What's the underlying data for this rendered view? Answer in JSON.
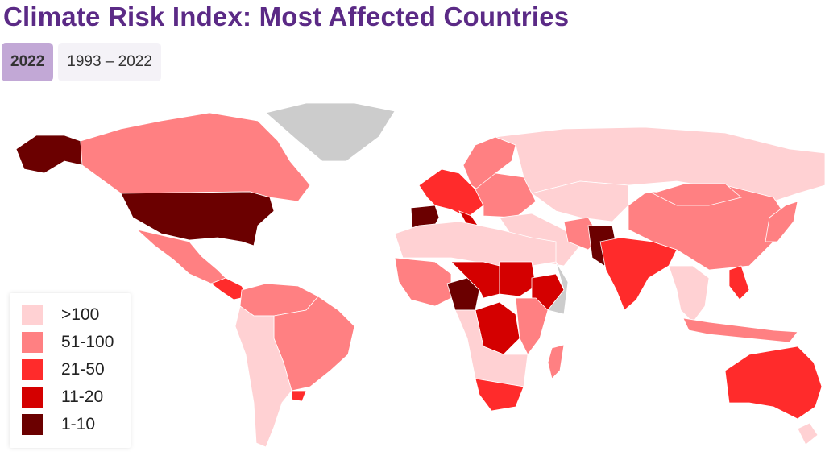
{
  "title": "Climate Risk Index: Most Affected Countries",
  "tabs": [
    {
      "label": "2022",
      "active": true
    },
    {
      "label": "1993 – 2022",
      "active": false
    }
  ],
  "legend": [
    {
      "label": ">100",
      "color": "#ffd1d3"
    },
    {
      "label": "51-100",
      "color": "#ff8082"
    },
    {
      "label": "21-50",
      "color": "#ff2b2b"
    },
    {
      "label": "11-20",
      "color": "#d40000"
    },
    {
      "label": "1-10",
      "color": "#6b0000"
    }
  ],
  "no_data_color": "#cccccc",
  "regions": [
    {
      "name": "Alaska (USA)",
      "category": 4
    },
    {
      "name": "Canada",
      "category": 1
    },
    {
      "name": "Greenland",
      "category": -1
    },
    {
      "name": "United States",
      "category": 4
    },
    {
      "name": "Mexico",
      "category": 1
    },
    {
      "name": "Central America",
      "category": 2
    },
    {
      "name": "South America North",
      "category": 1
    },
    {
      "name": "Brazil",
      "category": 1
    },
    {
      "name": "Southern Cone",
      "category": 0
    },
    {
      "name": "Uruguay",
      "category": 2
    },
    {
      "name": "Scandinavia",
      "category": 1
    },
    {
      "name": "Western Europe",
      "category": 2
    },
    {
      "name": "Spain",
      "category": 4
    },
    {
      "name": "Italy",
      "category": 3
    },
    {
      "name": "Eastern Europe",
      "category": 1
    },
    {
      "name": "Russia",
      "category": 0
    },
    {
      "name": "Central Asia",
      "category": 0
    },
    {
      "name": "Middle East",
      "category": 0
    },
    {
      "name": "Iran",
      "category": 1
    },
    {
      "name": "Pakistan",
      "category": 4
    },
    {
      "name": "India",
      "category": 2
    },
    {
      "name": "China",
      "category": 1
    },
    {
      "name": "Mongolia",
      "category": 1
    },
    {
      "name": "Japan",
      "category": 1
    },
    {
      "name": "Southeast Asia",
      "category": 0
    },
    {
      "name": "Philippines",
      "category": 2
    },
    {
      "name": "Indonesia",
      "category": 1
    },
    {
      "name": "North Africa",
      "category": 0
    },
    {
      "name": "West Africa",
      "category": 1
    },
    {
      "name": "Nigeria",
      "category": 4
    },
    {
      "name": "Sahel",
      "category": 3
    },
    {
      "name": "Sudan",
      "category": 3
    },
    {
      "name": "Ethiopia",
      "category": 3
    },
    {
      "name": "Somalia",
      "category": -1
    },
    {
      "name": "DR Congo",
      "category": 3
    },
    {
      "name": "East Africa",
      "category": 1
    },
    {
      "name": "Southern Africa",
      "category": 0
    },
    {
      "name": "South Africa",
      "category": 2
    },
    {
      "name": "Madagascar",
      "category": 1
    },
    {
      "name": "Australia",
      "category": 2
    },
    {
      "name": "New Zealand",
      "category": 0
    }
  ]
}
